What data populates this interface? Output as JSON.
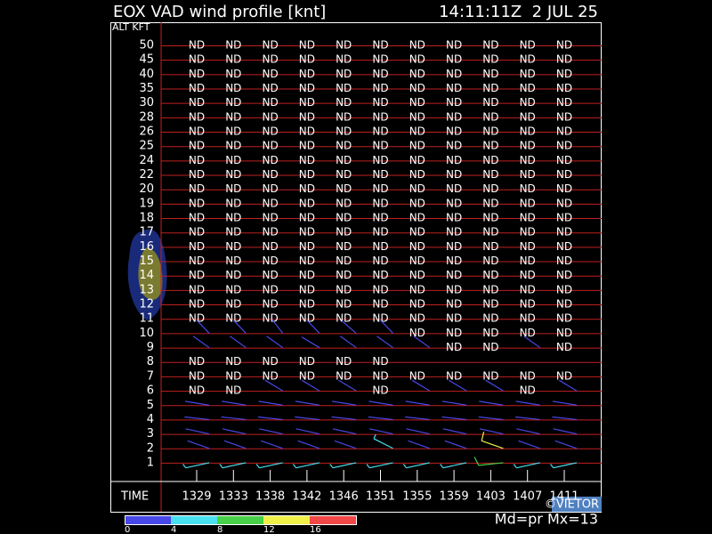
{
  "header": {
    "title": "EOX VAD wind profile [knt]",
    "timestamp": "14:11:11Z  2 JUL 25"
  },
  "grid": {
    "alt_label": "ALT KFT",
    "time_label": "TIME",
    "times": [
      "1329",
      "1333",
      "1338",
      "1342",
      "1346",
      "1351",
      "1355",
      "1359",
      "1403",
      "1407",
      "1411"
    ],
    "rows": [
      {
        "alt": 50,
        "cells": [
          "ND",
          "ND",
          "ND",
          "ND",
          "ND",
          "ND",
          "ND",
          "ND",
          "ND",
          "ND",
          "ND"
        ]
      },
      {
        "alt": 45,
        "cells": [
          "ND",
          "ND",
          "ND",
          "ND",
          "ND",
          "ND",
          "ND",
          "ND",
          "ND",
          "ND",
          "ND"
        ]
      },
      {
        "alt": 40,
        "cells": [
          "ND",
          "ND",
          "ND",
          "ND",
          "ND",
          "ND",
          "ND",
          "ND",
          "ND",
          "ND",
          "ND"
        ]
      },
      {
        "alt": 35,
        "cells": [
          "ND",
          "ND",
          "ND",
          "ND",
          "ND",
          "ND",
          "ND",
          "ND",
          "ND",
          "ND",
          "ND"
        ]
      },
      {
        "alt": 30,
        "cells": [
          "ND",
          "ND",
          "ND",
          "ND",
          "ND",
          "ND",
          "ND",
          "ND",
          "ND",
          "ND",
          "ND"
        ]
      },
      {
        "alt": 28,
        "cells": [
          "ND",
          "ND",
          "ND",
          "ND",
          "ND",
          "ND",
          "ND",
          "ND",
          "ND",
          "ND",
          "ND"
        ]
      },
      {
        "alt": 26,
        "cells": [
          "ND",
          "ND",
          "ND",
          "ND",
          "ND",
          "ND",
          "ND",
          "ND",
          "ND",
          "ND",
          "ND"
        ]
      },
      {
        "alt": 25,
        "cells": [
          "ND",
          "ND",
          "ND",
          "ND",
          "ND",
          "ND",
          "ND",
          "ND",
          "ND",
          "ND",
          "ND"
        ]
      },
      {
        "alt": 24,
        "cells": [
          "ND",
          "ND",
          "ND",
          "ND",
          "ND",
          "ND",
          "ND",
          "ND",
          "ND",
          "ND",
          "ND"
        ]
      },
      {
        "alt": 22,
        "cells": [
          "ND",
          "ND",
          "ND",
          "ND",
          "ND",
          "ND",
          "ND",
          "ND",
          "ND",
          "ND",
          "ND"
        ]
      },
      {
        "alt": 20,
        "cells": [
          "ND",
          "ND",
          "ND",
          "ND",
          "ND",
          "ND",
          "ND",
          "ND",
          "ND",
          "ND",
          "ND"
        ]
      },
      {
        "alt": 19,
        "cells": [
          "ND",
          "ND",
          "ND",
          "ND",
          "ND",
          "ND",
          "ND",
          "ND",
          "ND",
          "ND",
          "ND"
        ]
      },
      {
        "alt": 18,
        "cells": [
          "ND",
          "ND",
          "ND",
          "ND",
          "ND",
          "ND",
          "ND",
          "ND",
          "ND",
          "ND",
          "ND"
        ]
      },
      {
        "alt": 17,
        "cells": [
          "ND",
          "ND",
          "ND",
          "ND",
          "ND",
          "ND",
          "ND",
          "ND",
          "ND",
          "ND",
          "ND"
        ]
      },
      {
        "alt": 16,
        "cells": [
          "ND",
          "ND",
          "ND",
          "ND",
          "ND",
          "ND",
          "ND",
          "ND",
          "ND",
          "ND",
          "ND"
        ]
      },
      {
        "alt": 15,
        "cells": [
          "ND",
          "ND",
          "ND",
          "ND",
          "ND",
          "ND",
          "ND",
          "ND",
          "ND",
          "ND",
          "ND"
        ]
      },
      {
        "alt": 14,
        "cells": [
          "ND",
          "ND",
          "ND",
          "ND",
          "ND",
          "ND",
          "ND",
          "ND",
          "ND",
          "ND",
          "ND"
        ]
      },
      {
        "alt": 13,
        "cells": [
          "ND",
          "ND",
          "ND",
          "ND",
          "ND",
          "ND",
          "ND",
          "ND",
          "ND",
          "ND",
          "ND"
        ]
      },
      {
        "alt": 12,
        "cells": [
          "ND",
          "ND",
          "ND",
          "ND",
          "ND",
          "ND",
          "ND",
          "ND",
          "ND",
          "ND",
          "ND"
        ]
      },
      {
        "alt": 11,
        "cells": [
          "ND",
          "ND",
          "ND",
          "ND",
          "ND",
          "ND",
          "ND",
          "ND",
          "ND",
          "ND",
          "ND"
        ]
      },
      {
        "alt": 10,
        "cells": [
          {
            "dir": 330,
            "spd": 3
          },
          {
            "dir": 330,
            "spd": 3
          },
          {
            "dir": 335,
            "spd": 3
          },
          {
            "dir": 330,
            "spd": 3
          },
          {
            "dir": 325,
            "spd": 3
          },
          {
            "dir": 330,
            "spd": 3
          },
          "ND",
          "ND",
          "ND",
          "ND",
          "ND"
        ]
      },
      {
        "alt": 9,
        "cells": [
          {
            "dir": 320,
            "spd": 3
          },
          {
            "dir": 320,
            "spd": 3
          },
          {
            "dir": 320,
            "spd": 3
          },
          {
            "dir": 315,
            "spd": 3
          },
          {
            "dir": 320,
            "spd": 3
          },
          {
            "dir": 320,
            "spd": 3
          },
          {
            "dir": 320,
            "spd": 3
          },
          "ND",
          "ND",
          {
            "dir": 320,
            "spd": 3
          },
          "ND"
        ]
      },
      {
        "alt": 8,
        "cells": [
          "ND",
          "ND",
          "ND",
          "ND",
          "ND",
          "ND",
          null,
          null,
          null,
          null,
          null
        ]
      },
      {
        "alt": 7,
        "cells": [
          "ND",
          "ND",
          "ND",
          "ND",
          "ND",
          "ND",
          "ND",
          "ND",
          "ND",
          "ND",
          "ND"
        ]
      },
      {
        "alt": 6,
        "cells": [
          "ND",
          "ND",
          {
            "dir": 315,
            "spd": 3
          },
          {
            "dir": 315,
            "spd": 3
          },
          {
            "dir": 315,
            "spd": 3
          },
          "ND",
          {
            "dir": 315,
            "spd": 3
          },
          {
            "dir": 315,
            "spd": 3
          },
          {
            "dir": 315,
            "spd": 3
          },
          "ND",
          {
            "dir": 315,
            "spd": 3
          }
        ]
      },
      {
        "alt": 5,
        "cells": [
          {
            "dir": 285,
            "spd": 3
          },
          {
            "dir": 285,
            "spd": 3
          },
          {
            "dir": 285,
            "spd": 3
          },
          {
            "dir": 285,
            "spd": 3
          },
          {
            "dir": 285,
            "spd": 3
          },
          {
            "dir": 285,
            "spd": 3
          },
          {
            "dir": 285,
            "spd": 3
          },
          {
            "dir": 285,
            "spd": 3
          },
          {
            "dir": 285,
            "spd": 3
          },
          {
            "dir": 285,
            "spd": 3
          },
          {
            "dir": 285,
            "spd": 3
          }
        ]
      },
      {
        "alt": 4,
        "cells": [
          {
            "dir": 280,
            "spd": 3
          },
          {
            "dir": 280,
            "spd": 3
          },
          {
            "dir": 280,
            "spd": 3
          },
          {
            "dir": 280,
            "spd": 3
          },
          {
            "dir": 280,
            "spd": 3
          },
          {
            "dir": 280,
            "spd": 3
          },
          {
            "dir": 280,
            "spd": 3
          },
          {
            "dir": 280,
            "spd": 3
          },
          {
            "dir": 280,
            "spd": 3
          },
          {
            "dir": 280,
            "spd": 3
          },
          {
            "dir": 280,
            "spd": 3
          }
        ]
      },
      {
        "alt": 3,
        "cells": [
          {
            "dir": 290,
            "spd": 3
          },
          {
            "dir": 290,
            "spd": 3
          },
          {
            "dir": 290,
            "spd": 3
          },
          {
            "dir": 290,
            "spd": 3
          },
          {
            "dir": 290,
            "spd": 3
          },
          {
            "dir": 290,
            "spd": 3
          },
          {
            "dir": 290,
            "spd": 3
          },
          {
            "dir": 290,
            "spd": 3
          },
          {
            "dir": 290,
            "spd": 3
          },
          {
            "dir": 290,
            "spd": 3
          },
          {
            "dir": 290,
            "spd": 3
          }
        ]
      },
      {
        "alt": 2,
        "cells": [
          {
            "dir": 300,
            "spd": 3
          },
          {
            "dir": 300,
            "spd": 3
          },
          {
            "dir": 300,
            "spd": 3
          },
          {
            "dir": 300,
            "spd": 3
          },
          {
            "dir": 300,
            "spd": 3
          },
          {
            "dir": 310,
            "spd": 6
          },
          {
            "dir": 300,
            "spd": 3
          },
          {
            "dir": 300,
            "spd": 3
          },
          {
            "dir": 300,
            "spd": 13
          },
          {
            "dir": 300,
            "spd": 3
          },
          {
            "dir": 300,
            "spd": 3
          }
        ]
      },
      {
        "alt": 1,
        "cells": [
          {
            "dir": 250,
            "spd": 6
          },
          {
            "dir": 250,
            "spd": 6
          },
          {
            "dir": 250,
            "spd": 6
          },
          {
            "dir": 250,
            "spd": 6
          },
          {
            "dir": 250,
            "spd": 6
          },
          {
            "dir": 250,
            "spd": 6
          },
          {
            "dir": 250,
            "spd": 6
          },
          {
            "dir": 250,
            "spd": 6
          },
          {
            "dir": 260,
            "spd": 10
          },
          {
            "dir": 250,
            "spd": 6
          },
          {
            "dir": 250,
            "spd": 6
          }
        ]
      }
    ]
  },
  "scale": {
    "ticks": [
      0,
      4,
      8,
      12,
      16
    ],
    "colors": [
      "#4848e8",
      "#48e0f0",
      "#48d048",
      "#f0f048",
      "#f04848"
    ]
  },
  "footer": {
    "mode": "Md=pr Mx=13",
    "credit": "©VIETOR"
  }
}
